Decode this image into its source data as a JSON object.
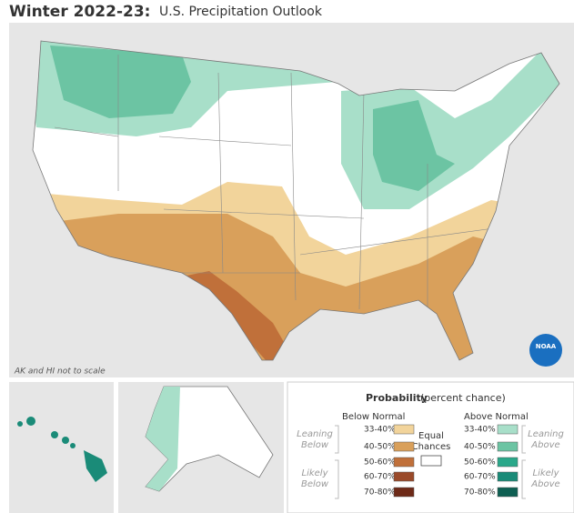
{
  "header": {
    "title_bold": "Winter 2022-23:",
    "title_rest": "U.S. Precipitation Outlook"
  },
  "map": {
    "note": "AK and HI not to scale",
    "logo": "NOAA"
  },
  "legend": {
    "title": "Probability",
    "subtitle": "(percent chance)",
    "below": {
      "heading": "Below Normal",
      "items": [
        {
          "label": "33-40%",
          "color": "#f2d49b"
        },
        {
          "label": "40-50%",
          "color": "#d9a05b"
        },
        {
          "label": "50-60%",
          "color": "#c0703a"
        },
        {
          "label": "60-70%",
          "color": "#9a4a2a"
        },
        {
          "label": "70-80%",
          "color": "#6e2a18"
        }
      ]
    },
    "above": {
      "heading": "Above Normal",
      "items": [
        {
          "label": "33-40%",
          "color": "#a8dfc9"
        },
        {
          "label": "40-50%",
          "color": "#6cc4a3"
        },
        {
          "label": "50-60%",
          "color": "#2aa88a"
        },
        {
          "label": "60-70%",
          "color": "#1a8b78"
        },
        {
          "label": "70-80%",
          "color": "#0e5f52"
        }
      ]
    },
    "leaning_below": [
      "Leaning",
      "Below"
    ],
    "likely_below": [
      "Likely",
      "Below"
    ],
    "equal": [
      "Equal",
      "Chances"
    ],
    "leaning_above": [
      "Leaning",
      "Above"
    ],
    "likely_above": [
      "Likely",
      "Above"
    ]
  }
}
